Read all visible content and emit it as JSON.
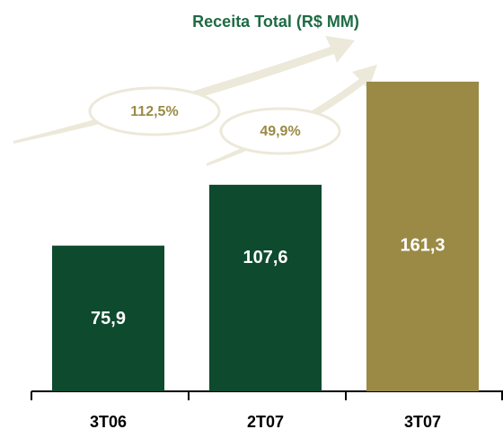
{
  "chart_data": {
    "type": "bar",
    "title": "Receita Total (R$ MM)",
    "categories": [
      "3T06",
      "2T07",
      "3T07"
    ],
    "values": [
      75.9,
      107.6,
      161.3
    ],
    "value_labels": [
      "75,9",
      "107,6",
      "161,3"
    ],
    "colors": [
      "#0e4a2e",
      "#0e4a2e",
      "#9a8a45"
    ],
    "annotations": [
      "112,5%",
      "49,9%"
    ]
  }
}
